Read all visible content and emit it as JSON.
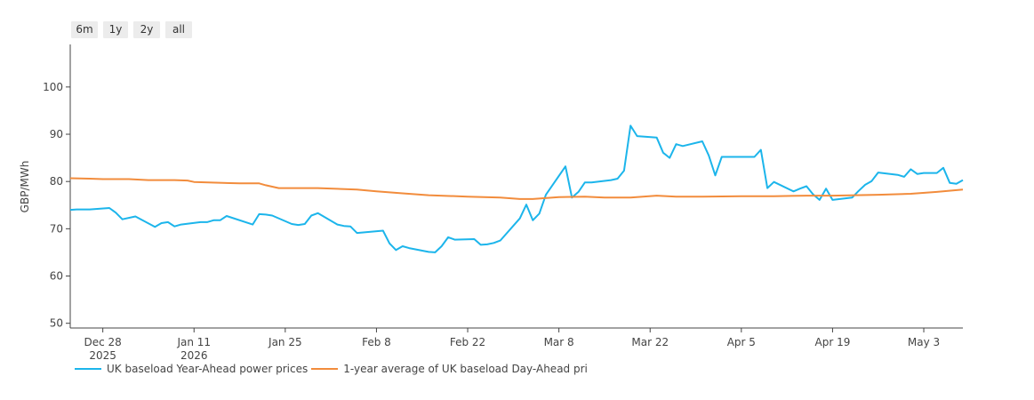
{
  "range_buttons": [
    "6m",
    "1y",
    "2y",
    "all"
  ],
  "chart_data": {
    "type": "line",
    "title": "",
    "xlabel": "",
    "ylabel": "GBP/MWh",
    "ylim": [
      49,
      109
    ],
    "xlim": [
      "2025-12-23",
      "2026-05-09"
    ],
    "y_ticks": [
      50,
      60,
      70,
      80,
      90,
      100
    ],
    "x_ticks": [
      {
        "date": "2025-12-28",
        "label": "Dec 28",
        "sub": "2025"
      },
      {
        "date": "2026-01-11",
        "label": "Jan 11",
        "sub": "2026"
      },
      {
        "date": "2026-01-25",
        "label": "Jan 25",
        "sub": ""
      },
      {
        "date": "2026-02-08",
        "label": "Feb 8",
        "sub": ""
      },
      {
        "date": "2026-02-22",
        "label": "Feb 22",
        "sub": ""
      },
      {
        "date": "2026-03-08",
        "label": "Mar 8",
        "sub": ""
      },
      {
        "date": "2026-03-22",
        "label": "Mar 22",
        "sub": ""
      },
      {
        "date": "2026-04-05",
        "label": "Apr 5",
        "sub": ""
      },
      {
        "date": "2026-04-19",
        "label": "Apr 19",
        "sub": ""
      },
      {
        "date": "2026-05-03",
        "label": "May 3",
        "sub": ""
      }
    ],
    "grid": false,
    "legend_position": "bottom",
    "series": [
      {
        "name": "UK baseload Year-Ahead power prices",
        "color": "#1cb5eb",
        "points": [
          [
            "2025-12-23",
            74.0
          ],
          [
            "2025-12-24",
            74.1
          ],
          [
            "2025-12-26",
            74.1
          ],
          [
            "2025-12-29",
            74.4
          ],
          [
            "2025-12-30",
            73.4
          ],
          [
            "2025-12-31",
            72.0
          ],
          [
            "2026-01-02",
            72.6
          ],
          [
            "2026-01-05",
            70.4
          ],
          [
            "2026-01-06",
            71.2
          ],
          [
            "2026-01-07",
            71.4
          ],
          [
            "2026-01-08",
            70.5
          ],
          [
            "2026-01-09",
            70.9
          ],
          [
            "2026-01-12",
            71.4
          ],
          [
            "2026-01-13",
            71.4
          ],
          [
            "2026-01-14",
            71.8
          ],
          [
            "2026-01-15",
            71.8
          ],
          [
            "2026-01-16",
            72.7
          ],
          [
            "2026-01-20",
            70.9
          ],
          [
            "2026-01-21",
            73.1
          ],
          [
            "2026-01-22",
            73.0
          ],
          [
            "2026-01-23",
            72.8
          ],
          [
            "2026-01-26",
            71.0
          ],
          [
            "2026-01-27",
            70.8
          ],
          [
            "2026-01-28",
            71.0
          ],
          [
            "2026-01-29",
            72.8
          ],
          [
            "2026-01-30",
            73.3
          ],
          [
            "2026-02-02",
            70.9
          ],
          [
            "2026-02-03",
            70.6
          ],
          [
            "2026-02-04",
            70.5
          ],
          [
            "2026-02-05",
            69.1
          ],
          [
            "2026-02-09",
            69.6
          ],
          [
            "2026-02-10",
            66.9
          ],
          [
            "2026-02-11",
            65.5
          ],
          [
            "2026-02-12",
            66.3
          ],
          [
            "2026-02-13",
            65.9
          ],
          [
            "2026-02-16",
            65.1
          ],
          [
            "2026-02-17",
            65.0
          ],
          [
            "2026-02-18",
            66.3
          ],
          [
            "2026-02-19",
            68.2
          ],
          [
            "2026-02-20",
            67.7
          ],
          [
            "2026-02-23",
            67.8
          ],
          [
            "2026-02-24",
            66.6
          ],
          [
            "2026-02-25",
            66.7
          ],
          [
            "2026-02-26",
            67.0
          ],
          [
            "2026-02-27",
            67.5
          ],
          [
            "2026-03-02",
            72.2
          ],
          [
            "2026-03-03",
            75.1
          ],
          [
            "2026-03-04",
            71.8
          ],
          [
            "2026-03-05",
            73.2
          ],
          [
            "2026-03-06",
            77.2
          ],
          [
            "2026-03-09",
            83.2
          ],
          [
            "2026-03-10",
            76.6
          ],
          [
            "2026-03-11",
            77.8
          ],
          [
            "2026-03-12",
            79.8
          ],
          [
            "2026-03-13",
            79.8
          ],
          [
            "2026-03-16",
            80.3
          ],
          [
            "2026-03-17",
            80.6
          ],
          [
            "2026-03-18",
            82.3
          ],
          [
            "2026-03-19",
            91.8
          ],
          [
            "2026-03-20",
            89.6
          ],
          [
            "2026-03-23",
            89.3
          ],
          [
            "2026-03-24",
            86.1
          ],
          [
            "2026-03-25",
            85.0
          ],
          [
            "2026-03-26",
            87.9
          ],
          [
            "2026-03-27",
            87.5
          ],
          [
            "2026-03-30",
            88.5
          ],
          [
            "2026-03-31",
            85.5
          ],
          [
            "2026-04-01",
            81.3
          ],
          [
            "2026-04-02",
            85.2
          ],
          [
            "2026-04-07",
            85.2
          ],
          [
            "2026-04-08",
            86.7
          ],
          [
            "2026-04-09",
            78.6
          ],
          [
            "2026-04-10",
            79.9
          ],
          [
            "2026-04-13",
            77.9
          ],
          [
            "2026-04-14",
            78.5
          ],
          [
            "2026-04-15",
            79.0
          ],
          [
            "2026-04-16",
            77.3
          ],
          [
            "2026-04-17",
            76.1
          ],
          [
            "2026-04-18",
            78.5
          ],
          [
            "2026-04-19",
            76.1
          ],
          [
            "2026-04-22",
            76.6
          ],
          [
            "2026-04-23",
            78.0
          ],
          [
            "2026-04-24",
            79.3
          ],
          [
            "2026-04-25",
            80.1
          ],
          [
            "2026-04-26",
            81.9
          ],
          [
            "2026-04-29",
            81.4
          ],
          [
            "2026-04-30",
            81.0
          ],
          [
            "2026-05-01",
            82.6
          ],
          [
            "2026-05-02",
            81.6
          ],
          [
            "2026-05-03",
            81.8
          ],
          [
            "2026-05-05",
            81.8
          ],
          [
            "2026-05-06",
            82.9
          ],
          [
            "2026-05-07",
            79.7
          ],
          [
            "2026-05-08",
            79.5
          ],
          [
            "2026-05-09",
            80.3
          ]
        ]
      },
      {
        "name": "1-year average of UK baseload Day-Ahead pri",
        "color": "#f28c3c",
        "points": [
          [
            "2025-12-23",
            80.7
          ],
          [
            "2025-12-26",
            80.6
          ],
          [
            "2025-12-28",
            80.5
          ],
          [
            "2026-01-01",
            80.5
          ],
          [
            "2026-01-04",
            80.3
          ],
          [
            "2026-01-08",
            80.3
          ],
          [
            "2026-01-10",
            80.2
          ],
          [
            "2026-01-11",
            79.9
          ],
          [
            "2026-01-18",
            79.6
          ],
          [
            "2026-01-21",
            79.6
          ],
          [
            "2026-01-22",
            79.2
          ],
          [
            "2026-01-23",
            78.9
          ],
          [
            "2026-01-24",
            78.6
          ],
          [
            "2026-01-30",
            78.6
          ],
          [
            "2026-02-05",
            78.3
          ],
          [
            "2026-02-08",
            77.9
          ],
          [
            "2026-02-12",
            77.5
          ],
          [
            "2026-02-16",
            77.1
          ],
          [
            "2026-02-22",
            76.8
          ],
          [
            "2026-02-27",
            76.6
          ],
          [
            "2026-03-02",
            76.3
          ],
          [
            "2026-03-04",
            76.3
          ],
          [
            "2026-03-08",
            76.7
          ],
          [
            "2026-03-12",
            76.8
          ],
          [
            "2026-03-15",
            76.6
          ],
          [
            "2026-03-19",
            76.6
          ],
          [
            "2026-03-23",
            77.0
          ],
          [
            "2026-03-26",
            76.8
          ],
          [
            "2026-03-30",
            76.8
          ],
          [
            "2026-04-05",
            76.9
          ],
          [
            "2026-04-10",
            76.9
          ],
          [
            "2026-04-15",
            77.0
          ],
          [
            "2026-04-19",
            77.0
          ],
          [
            "2026-04-26",
            77.2
          ],
          [
            "2026-05-01",
            77.4
          ],
          [
            "2026-05-05",
            77.8
          ],
          [
            "2026-05-09",
            78.3
          ]
        ]
      }
    ]
  }
}
